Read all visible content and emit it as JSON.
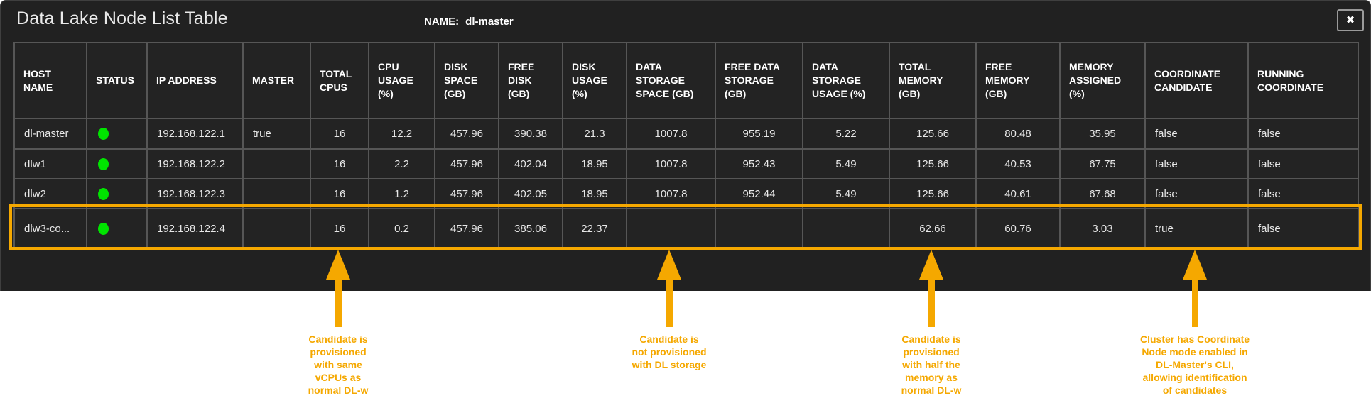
{
  "window": {
    "title": "Data Lake Node List Table",
    "name_label": "NAME:",
    "name_value": "dl-master",
    "close_icon": "✖"
  },
  "colors": {
    "accent_orange": "#F5A800",
    "status_green": "#00E400"
  },
  "table": {
    "columns": [
      {
        "id": "host-name",
        "label": "HOST\nNAME"
      },
      {
        "id": "status",
        "label": "STATUS"
      },
      {
        "id": "ip-address",
        "label": "IP ADDRESS"
      },
      {
        "id": "master",
        "label": "MASTER"
      },
      {
        "id": "total-cpus",
        "label": "TOTAL\nCPUS"
      },
      {
        "id": "cpu-usage",
        "label": "CPU\nUSAGE\n(%)"
      },
      {
        "id": "disk-space",
        "label": "DISK\nSPACE\n(GB)"
      },
      {
        "id": "free-disk",
        "label": "FREE\nDISK\n(GB)"
      },
      {
        "id": "disk-usage",
        "label": "DISK\nUSAGE\n(%)"
      },
      {
        "id": "data-storage-space",
        "label": "DATA\nSTORAGE\nSPACE (GB)"
      },
      {
        "id": "free-data-storage",
        "label": "FREE DATA\nSTORAGE\n(GB)"
      },
      {
        "id": "data-storage-usage",
        "label": "DATA\nSTORAGE\nUSAGE (%)"
      },
      {
        "id": "total-memory",
        "label": "TOTAL\nMEMORY\n(GB)"
      },
      {
        "id": "free-memory",
        "label": "FREE\nMEMORY\n(GB)"
      },
      {
        "id": "memory-assigned",
        "label": "MEMORY\nASSIGNED\n(%)"
      },
      {
        "id": "coordinate-candidate",
        "label": "COORDINATE\nCANDIDATE"
      },
      {
        "id": "running-coordinate",
        "label": "RUNNING\nCOORDINATE"
      }
    ],
    "rows": [
      {
        "highlighted": false,
        "status": "online",
        "cells": [
          "dl-master",
          "",
          "192.168.122.1",
          "true",
          "16",
          "12.2",
          "457.96",
          "390.38",
          "21.3",
          "1007.8",
          "955.19",
          "5.22",
          "125.66",
          "80.48",
          "35.95",
          "false",
          "false"
        ]
      },
      {
        "highlighted": false,
        "status": "online",
        "cells": [
          "dlw1",
          "",
          "192.168.122.2",
          "",
          "16",
          "2.2",
          "457.96",
          "402.04",
          "18.95",
          "1007.8",
          "952.43",
          "5.49",
          "125.66",
          "40.53",
          "67.75",
          "false",
          "false"
        ]
      },
      {
        "highlighted": false,
        "status": "online",
        "cells": [
          "dlw2",
          "",
          "192.168.122.3",
          "",
          "16",
          "1.2",
          "457.96",
          "402.05",
          "18.95",
          "1007.8",
          "952.44",
          "5.49",
          "125.66",
          "40.61",
          "67.68",
          "false",
          "false"
        ]
      },
      {
        "highlighted": true,
        "status": "online",
        "cells": [
          "dlw3-co...",
          "",
          "192.168.122.4",
          "",
          "16",
          "0.2",
          "457.96",
          "385.06",
          "22.37",
          "",
          "",
          "",
          "62.66",
          "60.76",
          "3.03",
          "true",
          "false"
        ]
      }
    ]
  },
  "annotations": [
    {
      "target": "total-cpus",
      "text": "Candidate is\nprovisioned\nwith same\nvCPUs as\nnormal DL-w"
    },
    {
      "target": "data-storage-space",
      "text": "Candidate is\nnot provisioned\nwith DL storage"
    },
    {
      "target": "total-memory",
      "text": "Candidate is\nprovisioned\nwith half the\nmemory as\nnormal DL-w"
    },
    {
      "target": "coordinate-candidate",
      "text": "Cluster has Coordinate\nNode mode enabled in\nDL-Master's CLI,\nallowing identification\nof candidates"
    }
  ]
}
